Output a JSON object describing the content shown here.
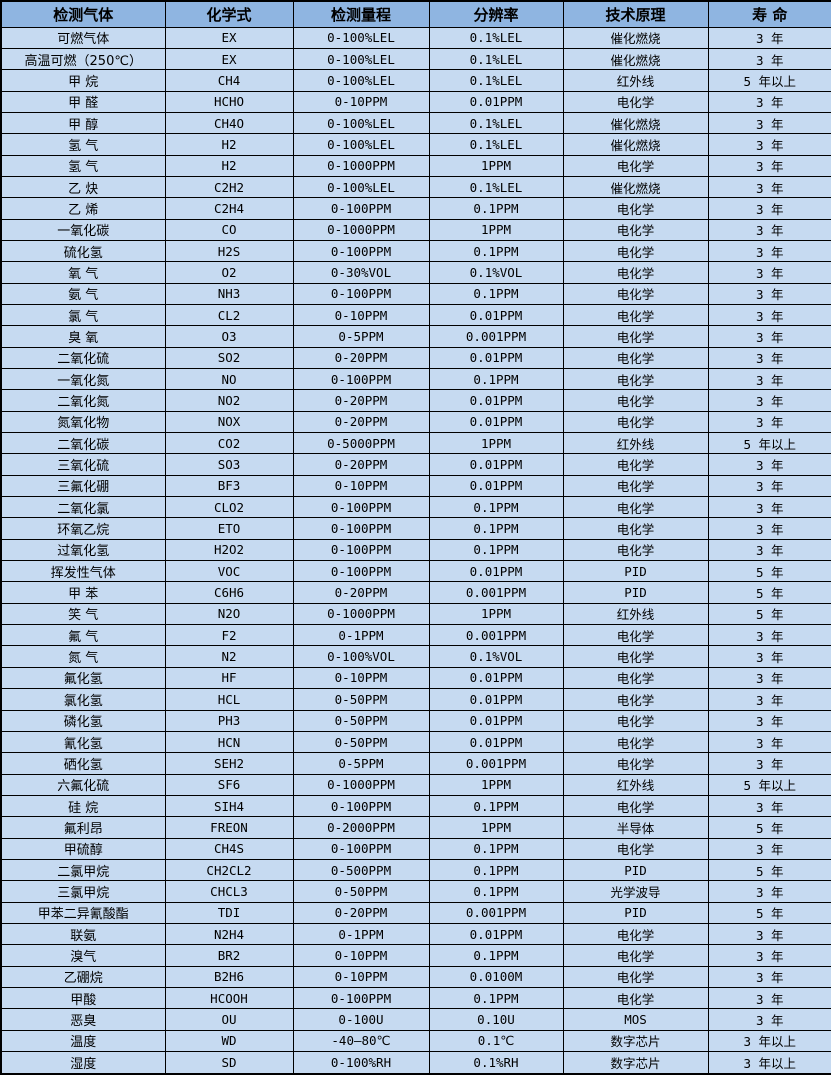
{
  "colors": {
    "header_bg": "#8fb5e1",
    "row_bg": "#c6daf1",
    "grid_border": "#000000",
    "text": "#000000"
  },
  "table": {
    "headers": [
      "检测气体",
      "化学式",
      "检测量程",
      "分辨率",
      "技术原理",
      "寿 命"
    ],
    "rows": [
      [
        "可燃气体",
        "EX",
        "0-100%LEL",
        "0.1%LEL",
        "催化燃烧",
        "3 年"
      ],
      [
        "高温可燃（250℃）",
        "EX",
        "0-100%LEL",
        "0.1%LEL",
        "催化燃烧",
        "3 年"
      ],
      [
        "甲 烷",
        "CH4",
        "0-100%LEL",
        "0.1%LEL",
        "红外线",
        "5 年以上"
      ],
      [
        "甲 醛",
        "HCHO",
        "0-10PPM",
        "0.01PPM",
        "电化学",
        "3 年"
      ],
      [
        "甲 醇",
        "CH4O",
        "0-100%LEL",
        "0.1%LEL",
        "催化燃烧",
        "3 年"
      ],
      [
        "氢 气",
        "H2",
        "0-100%LEL",
        "0.1%LEL",
        "催化燃烧",
        "3 年"
      ],
      [
        "氢 气",
        "H2",
        "0-1000PPM",
        "1PPM",
        "电化学",
        "3 年"
      ],
      [
        "乙 炔",
        "C2H2",
        "0-100%LEL",
        "0.1%LEL",
        "催化燃烧",
        "3 年"
      ],
      [
        "乙 烯",
        "C2H4",
        "0-100PPM",
        "0.1PPM",
        "电化学",
        "3 年"
      ],
      [
        "一氧化碳",
        "CO",
        "0-1000PPM",
        "1PPM",
        "电化学",
        "3 年"
      ],
      [
        "硫化氢",
        "H2S",
        "0-100PPM",
        "0.1PPM",
        "电化学",
        "3 年"
      ],
      [
        "氧 气",
        "O2",
        "0-30%VOL",
        "0.1%VOL",
        "电化学",
        "3 年"
      ],
      [
        "氨 气",
        "NH3",
        "0-100PPM",
        "0.1PPM",
        "电化学",
        "3 年"
      ],
      [
        "氯 气",
        "CL2",
        "0-10PPM",
        "0.01PPM",
        "电化学",
        "3 年"
      ],
      [
        "臭 氧",
        "O3",
        "0-5PPM",
        "0.001PPM",
        "电化学",
        "3 年"
      ],
      [
        "二氧化硫",
        "SO2",
        "0-20PPM",
        "0.01PPM",
        "电化学",
        "3 年"
      ],
      [
        "一氧化氮",
        "NO",
        "0-100PPM",
        "0.1PPM",
        "电化学",
        "3 年"
      ],
      [
        "二氧化氮",
        "NO2",
        "0-20PPM",
        "0.01PPM",
        "电化学",
        "3 年"
      ],
      [
        "氮氧化物",
        "NOX",
        "0-20PPM",
        "0.01PPM",
        "电化学",
        "3 年"
      ],
      [
        "二氧化碳",
        "CO2",
        "0-5000PPM",
        "1PPM",
        "红外线",
        "5 年以上"
      ],
      [
        "三氧化硫",
        "SO3",
        "0-20PPM",
        "0.01PPM",
        "电化学",
        "3 年"
      ],
      [
        "三氟化硼",
        "BF3",
        "0-10PPM",
        "0.01PPM",
        "电化学",
        "3 年"
      ],
      [
        "二氧化氯",
        "CLO2",
        "0-100PPM",
        "0.1PPM",
        "电化学",
        "3 年"
      ],
      [
        "环氧乙烷",
        "ETO",
        "0-100PPM",
        "0.1PPM",
        "电化学",
        "3 年"
      ],
      [
        "过氧化氢",
        "H2O2",
        "0-100PPM",
        "0.1PPM",
        "电化学",
        "3 年"
      ],
      [
        "挥发性气体",
        "VOC",
        "0-100PPM",
        "0.01PPM",
        "PID",
        "5 年"
      ],
      [
        "甲 苯",
        "C6H6",
        "0-20PPM",
        "0.001PPM",
        "PID",
        "5 年"
      ],
      [
        "笑 气",
        "N2O",
        "0-1000PPM",
        "1PPM",
        "红外线",
        "5 年"
      ],
      [
        "氟 气",
        "F2",
        "0-1PPM",
        "0.001PPM",
        "电化学",
        "3 年"
      ],
      [
        "氮 气",
        "N2",
        "0-100%VOL",
        "0.1%VOL",
        "电化学",
        "3 年"
      ],
      [
        "氟化氢",
        "HF",
        "0-10PPM",
        "0.01PPM",
        "电化学",
        "3 年"
      ],
      [
        "氯化氢",
        "HCL",
        "0-50PPM",
        "0.01PPM",
        "电化学",
        "3 年"
      ],
      [
        "磷化氢",
        "PH3",
        "0-50PPM",
        "0.01PPM",
        "电化学",
        "3 年"
      ],
      [
        "氰化氢",
        "HCN",
        "0-50PPM",
        "0.01PPM",
        "电化学",
        "3 年"
      ],
      [
        "硒化氢",
        "SEH2",
        "0-5PPM",
        "0.001PPM",
        "电化学",
        "3 年"
      ],
      [
        "六氟化硫",
        "SF6",
        "0-1000PPM",
        "1PPM",
        "红外线",
        "5 年以上"
      ],
      [
        "硅 烷",
        "SIH4",
        "0-100PPM",
        "0.1PPM",
        "电化学",
        "3 年"
      ],
      [
        "氟利昂",
        "FREON",
        "0-2000PPM",
        "1PPM",
        "半导体",
        "5 年"
      ],
      [
        "甲硫醇",
        "CH4S",
        "0-100PPM",
        "0.1PPM",
        "电化学",
        "3 年"
      ],
      [
        "二氯甲烷",
        "CH2CL2",
        "0-500PPM",
        "0.1PPM",
        "PID",
        "5 年"
      ],
      [
        "三氯甲烷",
        "CHCL3",
        "0-50PPM",
        "0.1PPM",
        "光学波导",
        "3 年"
      ],
      [
        "甲苯二异氰酸酯",
        "TDI",
        "0-20PPM",
        "0.001PPM",
        "PID",
        "5 年"
      ],
      [
        "联氨",
        "N2H4",
        "0-1PPM",
        "0.01PPM",
        "电化学",
        "3 年"
      ],
      [
        "溴气",
        "BR2",
        "0-10PPM",
        "0.1PPM",
        "电化学",
        "3 年"
      ],
      [
        "乙硼烷",
        "B2H6",
        "0-10PPM",
        "0.0100M",
        "电化学",
        "3 年"
      ],
      [
        "甲酸",
        "HCOOH",
        "0-100PPM",
        "0.1PPM",
        "电化学",
        "3 年"
      ],
      [
        "恶臭",
        "OU",
        "0-100U",
        "0.10U",
        "MOS",
        "3 年"
      ],
      [
        "温度",
        "WD",
        "-40—80℃",
        "0.1℃",
        "数字芯片",
        "3 年以上"
      ],
      [
        "湿度",
        "SD",
        "0-100%RH",
        "0.1%RH",
        "数字芯片",
        "3 年以上"
      ]
    ],
    "column_names": [
      "cell-gas-name",
      "cell-chemical-formula",
      "cell-detection-range",
      "cell-resolution",
      "cell-technology-principle",
      "cell-lifespan"
    ]
  }
}
